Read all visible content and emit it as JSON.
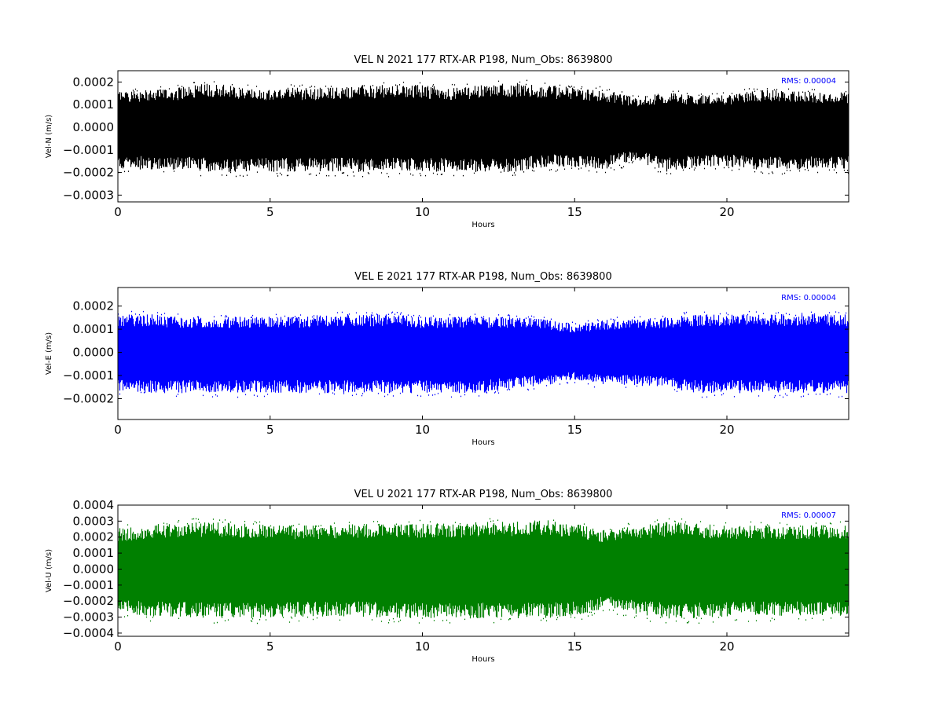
{
  "chart_data": [
    {
      "type": "line",
      "title": "VEL N 2021 177 RTX-AR  P198, Num_Obs: 8639800",
      "xlabel": "Hours",
      "ylabel": "Vel-N (m/s)",
      "xlim": [
        0,
        24
      ],
      "ylim": [
        -0.00033,
        0.00025
      ],
      "x_ticks": [
        0,
        5,
        10,
        15,
        20
      ],
      "x_tick_labels": [
        "0",
        "5",
        "10",
        "15",
        "20"
      ],
      "y_ticks": [
        0.0002,
        0.0001,
        0.0,
        -0.0001,
        -0.0002,
        -0.0003
      ],
      "y_tick_labels": [
        "0.0002",
        "0.0001",
        "0.0000",
        "−0.0001",
        "−0.0002",
        "−0.0003"
      ],
      "color": "#000000",
      "annotation": "RMS:  0.00004",
      "annotation_color": "#0000ff",
      "series": [
        {
          "x": [
            0,
            1,
            2,
            3,
            4,
            5,
            6,
            7,
            8,
            9,
            10,
            11,
            12,
            13,
            14,
            15,
            16,
            17,
            18,
            19,
            20,
            21,
            22,
            23,
            24
          ],
          "upper": [
            0.00015,
            0.00015,
            0.00016,
            0.00018,
            0.00016,
            0.00016,
            0.00016,
            0.00016,
            0.00017,
            0.00017,
            0.00017,
            0.00016,
            0.00017,
            0.00018,
            0.00017,
            0.00016,
            0.00015,
            0.00012,
            0.00014,
            0.00013,
            0.00013,
            0.00015,
            0.00015,
            0.00014,
            0.00014
          ],
          "lower": [
            -0.00017,
            -0.00017,
            -0.00017,
            -0.00018,
            -0.00018,
            -0.00018,
            -0.00018,
            -0.00018,
            -0.00018,
            -0.00018,
            -0.00018,
            -0.00018,
            -0.00018,
            -0.00018,
            -0.00016,
            -0.00016,
            -0.00017,
            -0.00013,
            -0.00018,
            -0.00016,
            -0.00016,
            -0.00017,
            -0.00017,
            -0.00017,
            -0.00017
          ]
        }
      ]
    },
    {
      "type": "line",
      "title": "VEL E 2021 177 RTX-AR  P198, Num_Obs: 8639800",
      "xlabel": "Hours",
      "ylabel": "Vel-E (m/s)",
      "xlim": [
        0,
        24
      ],
      "ylim": [
        -0.00029,
        0.00028
      ],
      "x_ticks": [
        0,
        5,
        10,
        15,
        20
      ],
      "x_tick_labels": [
        "0",
        "5",
        "10",
        "15",
        "20"
      ],
      "y_ticks": [
        0.0002,
        0.0001,
        0.0,
        -0.0001,
        -0.0002
      ],
      "y_tick_labels": [
        "0.0002",
        "0.0001",
        "0.0000",
        "−0.0001",
        "−0.0002"
      ],
      "color": "#0000ff",
      "annotation": "RMS:  0.00004",
      "annotation_color": "#0000ff",
      "series": [
        {
          "x": [
            0,
            1,
            2,
            3,
            4,
            5,
            6,
            7,
            8,
            9,
            10,
            11,
            12,
            13,
            14,
            15,
            16,
            17,
            18,
            19,
            20,
            21,
            22,
            23,
            24
          ],
          "upper": [
            0.00015,
            0.00015,
            0.00014,
            0.00014,
            0.00014,
            0.00014,
            0.00014,
            0.00015,
            0.00015,
            0.00015,
            0.00014,
            0.00014,
            0.00014,
            0.00014,
            0.00013,
            0.00011,
            0.00013,
            0.00013,
            0.00014,
            0.00015,
            0.00015,
            0.00015,
            0.00015,
            0.00015,
            0.00015
          ],
          "lower": [
            -0.00015,
            -0.00016,
            -0.00016,
            -0.00016,
            -0.00016,
            -0.00016,
            -0.00016,
            -0.00016,
            -0.00016,
            -0.00016,
            -0.00016,
            -0.00016,
            -0.00016,
            -0.00014,
            -0.00013,
            -0.00011,
            -0.00013,
            -0.00013,
            -0.00014,
            -0.00016,
            -0.00016,
            -0.00016,
            -0.00016,
            -0.00016,
            -0.00016
          ]
        }
      ]
    },
    {
      "type": "line",
      "title": "VEL U 2021 177 RTX-AR  P198, Num_Obs: 8639800",
      "xlabel": "Hours",
      "ylabel": "Vel-U (m/s)",
      "xlim": [
        0,
        24
      ],
      "ylim": [
        -0.00042,
        0.0004
      ],
      "x_ticks": [
        0,
        5,
        10,
        15,
        20
      ],
      "x_tick_labels": [
        "0",
        "5",
        "10",
        "15",
        "20"
      ],
      "y_ticks": [
        0.0004,
        0.0003,
        0.0002,
        0.0001,
        0.0,
        -0.0001,
        -0.0002,
        -0.0003,
        -0.0004
      ],
      "y_tick_labels": [
        "0.0004",
        "0.0003",
        "0.0002",
        "0.0001",
        "0.0000",
        "−0.0001",
        "−0.0002",
        "−0.0003",
        "−0.0004"
      ],
      "color": "#008000",
      "annotation": "RMS:  0.00007",
      "annotation_color": "#0000ff",
      "series": [
        {
          "x": [
            0,
            1,
            2,
            3,
            4,
            5,
            6,
            7,
            8,
            9,
            10,
            11,
            12,
            13,
            14,
            15,
            16,
            17,
            18,
            19,
            20,
            21,
            22,
            23,
            24
          ],
          "upper": [
            0.00023,
            0.00025,
            0.00026,
            0.00027,
            0.00026,
            0.00025,
            0.00025,
            0.00025,
            0.00026,
            0.00026,
            0.00026,
            0.00026,
            0.00027,
            0.00027,
            0.00028,
            0.00026,
            0.00022,
            0.00025,
            0.00027,
            0.00026,
            0.00025,
            0.00025,
            0.00025,
            0.00025,
            0.00025
          ],
          "lower": [
            -0.00024,
            -0.00027,
            -0.00027,
            -0.00028,
            -0.00028,
            -0.00028,
            -0.00027,
            -0.00027,
            -0.00027,
            -0.00028,
            -0.00028,
            -0.00028,
            -0.00028,
            -0.00028,
            -0.00028,
            -0.00027,
            -0.00022,
            -0.00026,
            -0.00028,
            -0.00028,
            -0.00027,
            -0.00027,
            -0.00027,
            -0.00027,
            -0.00027
          ]
        }
      ]
    }
  ]
}
